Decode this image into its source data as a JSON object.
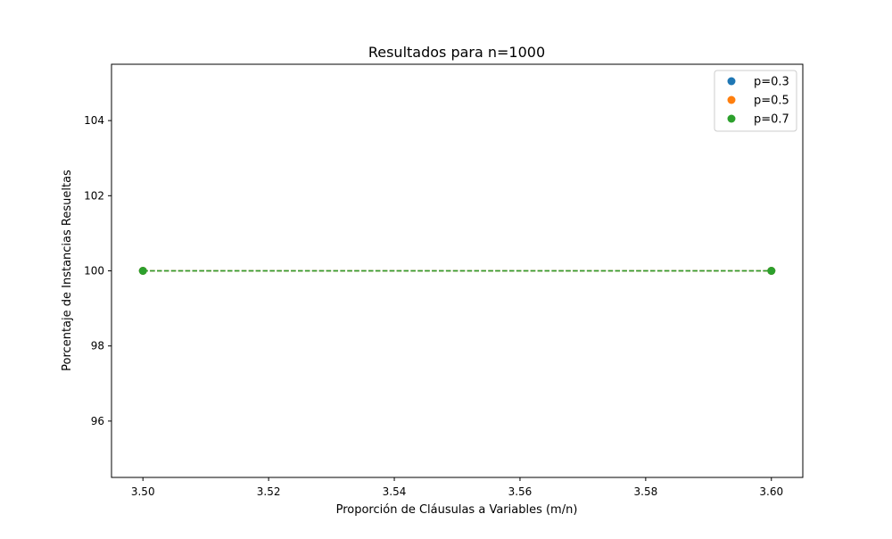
{
  "chart_data": {
    "type": "scatter",
    "title": "Resultados para n=1000",
    "xlabel": "Proporción de Cláusulas a Variables (m/n)",
    "ylabel": "Porcentaje de Instancias Resueltas",
    "xlim": [
      3.495,
      3.605
    ],
    "ylim": [
      94.5,
      105.5
    ],
    "xticks": [
      "3.50",
      "3.52",
      "3.54",
      "3.56",
      "3.58",
      "3.60"
    ],
    "yticks": [
      "96",
      "98",
      "100",
      "102",
      "104"
    ],
    "grid": false,
    "legend_position": "upper right",
    "line_style": "dashed",
    "series": [
      {
        "name": "p=0.3",
        "color": "#1f77b4",
        "x": [
          3.5,
          3.6
        ],
        "y": [
          100,
          100
        ]
      },
      {
        "name": "p=0.5",
        "color": "#ff7f0e",
        "x": [
          3.5,
          3.6
        ],
        "y": [
          100,
          100
        ]
      },
      {
        "name": "p=0.7",
        "color": "#2ca02c",
        "x": [
          3.5,
          3.6
        ],
        "y": [
          100,
          100
        ]
      }
    ]
  }
}
